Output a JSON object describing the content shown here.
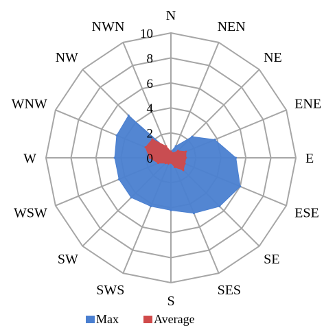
{
  "chart_data": {
    "type": "radar",
    "categories": [
      "N",
      "NEN",
      "NE",
      "ENE",
      "E",
      "ESE",
      "SE",
      "SES",
      "S",
      "SWS",
      "SW",
      "WSW",
      "W",
      "WNW",
      "NW",
      "NWN"
    ],
    "series": [
      {
        "name": "Max",
        "color": "#4a7fd0",
        "values": [
          0.5,
          1,
          2.4,
          3.8,
          5.2,
          6,
          5.5,
          4.8,
          4.2,
          4.2,
          4.5,
          4.5,
          4.5,
          4.7,
          4.8,
          0.7
        ]
      },
      {
        "name": "Average",
        "color": "#d04a4a",
        "values": [
          0.5,
          0.4,
          0.8,
          1.3,
          1.2,
          1.2,
          1.4,
          0.8,
          0.4,
          0.5,
          0.6,
          1.1,
          1.7,
          2.2,
          2.1,
          1.0
        ]
      }
    ],
    "rlim": [
      0,
      10
    ],
    "ticks": [
      "0",
      "2",
      "4",
      "6",
      "8",
      "10"
    ],
    "grid": true,
    "legend_position": "bottom"
  }
}
